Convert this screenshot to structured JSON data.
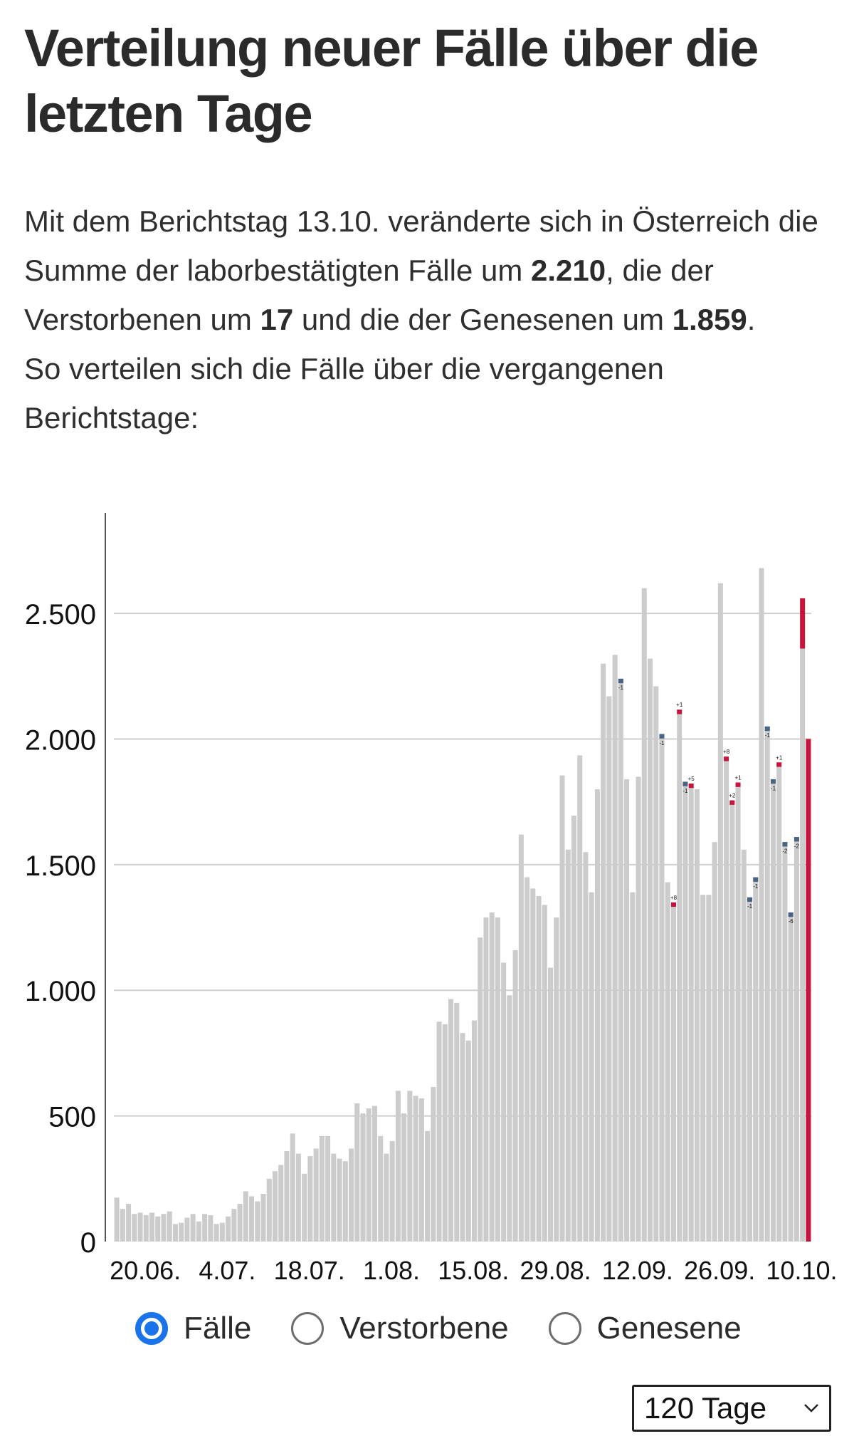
{
  "title": "Verteilung neuer Fälle über die letzten Tage",
  "intro": {
    "p1": "Mit dem Berichtstag 13.10. veränderte sich in Österreich die Summe der laborbestätigten Fälle um ",
    "cases_delta": "2.210",
    "p2": ", die der Verstorbenen um ",
    "deaths_delta": "17",
    "p3": " und die der Genesenen um ",
    "recovered_delta": "1.859",
    "p4": ".",
    "p5": "So verteilen sich die Fälle über die vergangenen Berichtstage:"
  },
  "colors": {
    "bar": "#cccccc",
    "increase": "#c8143c",
    "decrease": "#4a6484",
    "grid": "#cfcfcf",
    "axis": "#555555"
  },
  "chart_data": {
    "type": "bar",
    "stacked": true,
    "ylim": [
      0,
      2900
    ],
    "yticks": [
      0,
      500,
      1000,
      1500,
      2000,
      2500
    ],
    "ytick_labels": [
      "0",
      "500",
      "1.000",
      "1.500",
      "2.000",
      "2.500"
    ],
    "x_ticks": [
      {
        "index": 0,
        "label": "20.06."
      },
      {
        "index": 14,
        "label": "4.07."
      },
      {
        "index": 28,
        "label": "18.07."
      },
      {
        "index": 42,
        "label": "1.08."
      },
      {
        "index": 56,
        "label": "15.08."
      },
      {
        "index": 70,
        "label": "29.08."
      },
      {
        "index": 84,
        "label": "12.09."
      },
      {
        "index": 98,
        "label": "26.09."
      },
      {
        "index": 112,
        "label": "10.10."
      }
    ],
    "grid": true,
    "values": [
      175,
      130,
      150,
      110,
      115,
      105,
      115,
      100,
      110,
      120,
      70,
      75,
      95,
      110,
      80,
      110,
      105,
      70,
      75,
      100,
      130,
      150,
      200,
      180,
      160,
      190,
      250,
      280,
      305,
      360,
      430,
      350,
      270,
      340,
      370,
      420,
      420,
      350,
      330,
      320,
      370,
      550,
      510,
      530,
      540,
      420,
      350,
      400,
      600,
      510,
      600,
      580,
      570,
      440,
      615,
      875,
      865,
      965,
      950,
      830,
      800,
      880,
      1210,
      1290,
      1310,
      1290,
      1110,
      980,
      1160,
      1620,
      1450,
      1405,
      1375,
      1340,
      1090,
      1290,
      1855,
      1560,
      1695,
      1935,
      1550,
      1390,
      1800,
      2300,
      2170,
      2335,
      2240,
      1840,
      1390,
      1850,
      2600,
      2320,
      2210,
      2020,
      1430,
      1340,
      2100,
      1830,
      1810,
      1800,
      1380,
      1380,
      1590,
      2620,
      1920,
      1740,
      1810,
      1560,
      1370,
      1450,
      2680,
      2050,
      1840,
      1890,
      1590,
      1310,
      1610,
      2560
    ],
    "series": [
      {
        "name": "Fälle",
        "values": "values"
      }
    ],
    "changes": [
      {
        "index": 86,
        "delta": -1,
        "label": "-1"
      },
      {
        "index": 93,
        "delta": -1,
        "label": "-1"
      },
      {
        "index": 95,
        "delta": 8,
        "label": "+8"
      },
      {
        "index": 96,
        "delta": 1,
        "label": "+1"
      },
      {
        "index": 97,
        "delta": -1,
        "label": "-1"
      },
      {
        "index": 98,
        "delta": 5,
        "label": "+5"
      },
      {
        "index": 104,
        "delta": 8,
        "label": "+8"
      },
      {
        "index": 105,
        "delta": 2,
        "label": "+2"
      },
      {
        "index": 106,
        "delta": 1,
        "label": "+1"
      },
      {
        "index": 108,
        "delta": -1,
        "label": "-1"
      },
      {
        "index": 109,
        "delta": -1,
        "label": "-1"
      },
      {
        "index": 111,
        "delta": -1,
        "label": "-1"
      },
      {
        "index": 112,
        "delta": -1,
        "label": "-1"
      },
      {
        "index": 113,
        "delta": 1,
        "label": "+1"
      },
      {
        "index": 114,
        "delta": -2,
        "label": "-2"
      },
      {
        "index": 115,
        "delta": -6,
        "label": "-6"
      },
      {
        "index": 116,
        "delta": -2,
        "label": "-2"
      },
      {
        "index": 117,
        "delta": 200,
        "label": ""
      }
    ],
    "new_report": {
      "index": 118,
      "value": 2000
    }
  },
  "radio": {
    "options": [
      "Fälle",
      "Verstorbene",
      "Genesene"
    ],
    "selected": 0
  },
  "select": {
    "value": "120 Tage"
  }
}
